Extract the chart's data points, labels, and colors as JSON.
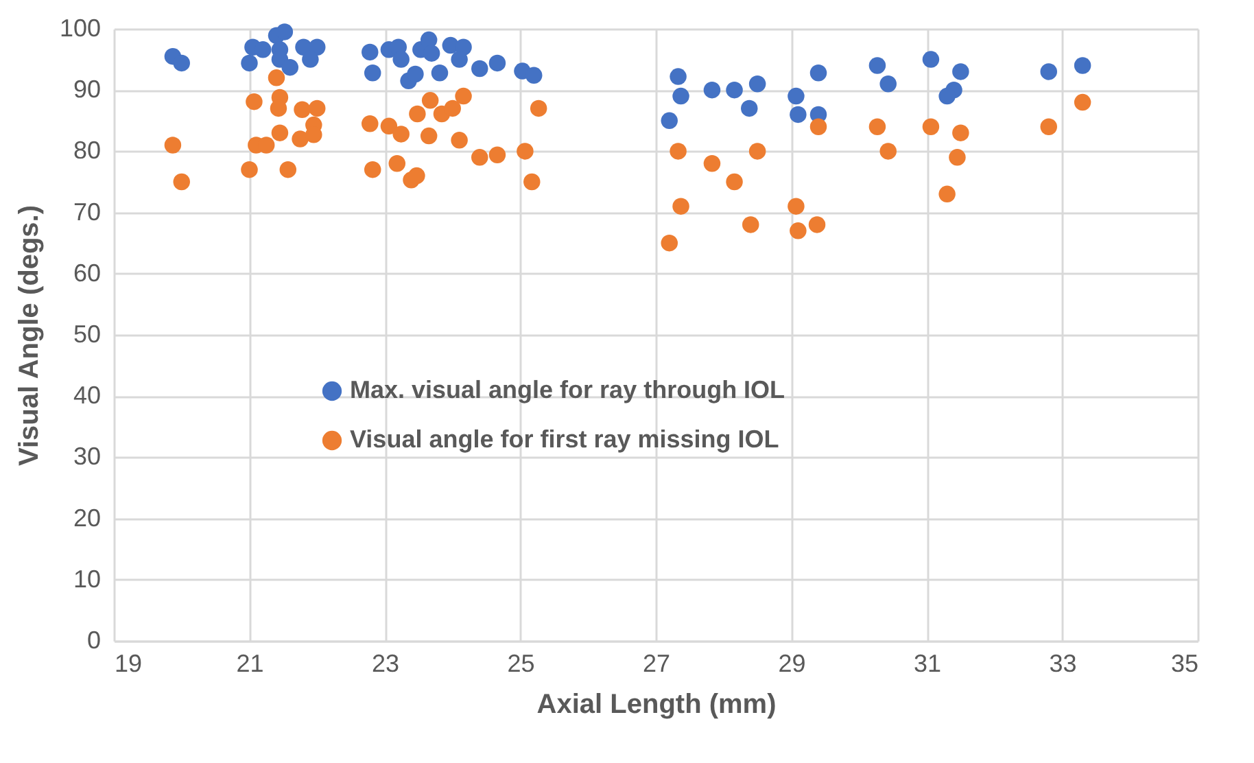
{
  "chart_data": {
    "type": "scatter",
    "xlabel": "Axial Length (mm)",
    "ylabel": "Visual Angle (degs.)",
    "xlim": [
      19,
      35
    ],
    "xticks": [
      19,
      21,
      23,
      25,
      27,
      29,
      31,
      33,
      35
    ],
    "ylim": [
      0,
      100
    ],
    "yticks": [
      0,
      10,
      20,
      30,
      40,
      50,
      60,
      70,
      80,
      90,
      100
    ],
    "grid": true,
    "legend": "center",
    "marker": "circle",
    "series": [
      {
        "name": "Max. visual angle for ray through IOL",
        "color": "#4472c4",
        "x": [
          19.87,
          20.0,
          21.0,
          21.05,
          21.2,
          21.4,
          21.52,
          21.45,
          21.45,
          21.6,
          21.8,
          22.0,
          21.9,
          22.78,
          22.82,
          23.06,
          23.2,
          23.24,
          23.35,
          23.45,
          23.53,
          23.65,
          23.69,
          23.81,
          23.97,
          24.16,
          24.1,
          24.4,
          24.66,
          25.03,
          25.2,
          27.33,
          27.37,
          27.2,
          27.83,
          28.16,
          28.5,
          28.38,
          29.07,
          29.1,
          29.4,
          29.4,
          30.27,
          30.43,
          31.06,
          31.5,
          31.4,
          31.3,
          32.8,
          33.3
        ],
        "values": [
          95.5,
          94.4,
          94.4,
          97,
          96.6,
          98.9,
          99.5,
          96.6,
          95,
          93.7,
          97,
          97,
          95,
          96.2,
          92.8,
          96.6,
          97,
          95,
          91.5,
          92.6,
          96.6,
          98.2,
          96,
          92.8,
          97.3,
          97,
          95,
          93.5,
          94.4,
          93.1,
          92.4,
          92.2,
          89,
          85,
          90,
          90,
          91,
          87,
          89,
          86,
          86,
          92.8,
          94,
          91,
          95,
          93,
          90,
          89,
          93,
          94
        ]
      },
      {
        "name": "Visual angle for first ray missing IOL",
        "color": "#ed7d31",
        "x": [
          19.87,
          20.0,
          21.0,
          21.07,
          21.1,
          21.25,
          21.4,
          21.45,
          21.43,
          21.45,
          21.57,
          21.75,
          21.78,
          21.95,
          21.95,
          22.0,
          22.78,
          22.82,
          23.06,
          23.18,
          23.24,
          23.39,
          23.47,
          23.48,
          23.65,
          23.67,
          23.84,
          24.0,
          24.1,
          24.16,
          24.4,
          24.66,
          25.07,
          25.17,
          25.27,
          27.2,
          27.33,
          27.37,
          27.83,
          28.16,
          28.4,
          28.5,
          29.07,
          29.1,
          29.38,
          29.4,
          30.27,
          30.43,
          31.06,
          31.3,
          31.45,
          31.5,
          32.8,
          33.3
        ],
        "values": [
          81,
          75,
          77,
          88.1,
          81,
          81,
          92,
          88.8,
          87,
          83,
          77,
          82,
          86.8,
          84.3,
          82.7,
          87,
          84.5,
          77,
          84.1,
          78,
          82.8,
          75.3,
          76,
          86.1,
          82.5,
          88.3,
          86.1,
          87,
          81.8,
          89,
          79,
          79.4,
          80,
          75,
          87,
          65,
          80,
          71,
          78,
          75,
          68,
          80,
          71,
          67,
          68,
          84,
          84,
          80,
          84,
          73,
          79,
          83,
          84,
          88
        ]
      }
    ]
  }
}
